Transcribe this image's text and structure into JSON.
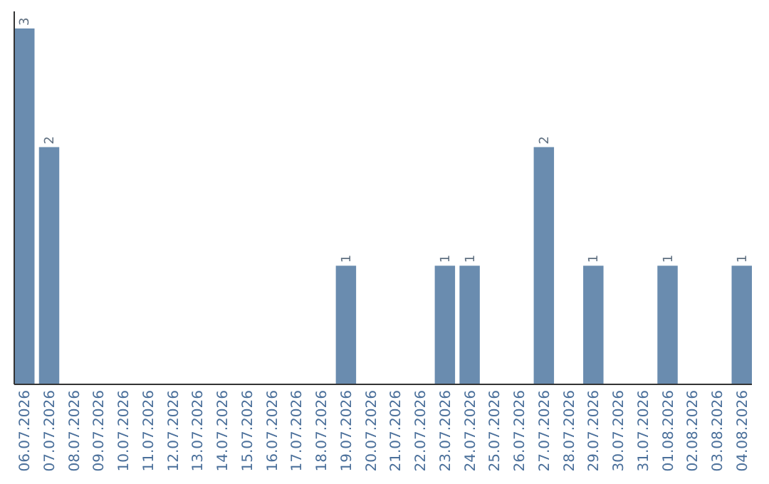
{
  "chart_data": {
    "type": "bar",
    "categories": [
      "06.07.2026",
      "07.07.2026",
      "08.07.2026",
      "09.07.2026",
      "10.07.2026",
      "11.07.2026",
      "12.07.2026",
      "13.07.2026",
      "14.07.2026",
      "15.07.2026",
      "16.07.2026",
      "17.07.2026",
      "18.07.2026",
      "19.07.2026",
      "20.07.2026",
      "21.07.2026",
      "22.07.2026",
      "23.07.2026",
      "24.07.2026",
      "25.07.2026",
      "26.07.2026",
      "27.07.2026",
      "28.07.2026",
      "29.07.2026",
      "30.07.2026",
      "31.07.2026",
      "01.08.2026",
      "02.08.2026",
      "03.08.2026",
      "04.08.2026"
    ],
    "values": [
      3,
      2,
      0,
      0,
      0,
      0,
      0,
      0,
      0,
      0,
      0,
      0,
      0,
      1,
      0,
      0,
      0,
      1,
      1,
      0,
      0,
      2,
      0,
      1,
      0,
      0,
      1,
      0,
      0,
      1
    ],
    "value_labels": [
      "3",
      "2",
      null,
      null,
      null,
      null,
      null,
      null,
      null,
      null,
      null,
      null,
      null,
      "1",
      null,
      null,
      null,
      "1",
      "1",
      null,
      null,
      "2",
      null,
      "1",
      null,
      null,
      "1",
      null,
      null,
      "1"
    ],
    "color": "#6a8caf",
    "tick_labels": "x"
  }
}
